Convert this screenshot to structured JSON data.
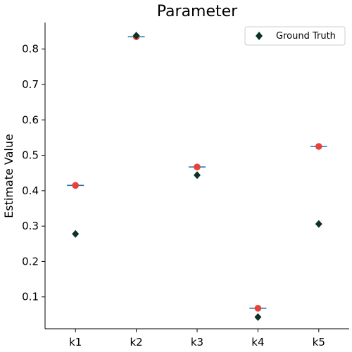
{
  "chart_data": {
    "type": "scatter",
    "title": "Parameter",
    "xlabel": "",
    "ylabel": "Estimate Value",
    "categories": [
      "k1",
      "k2",
      "k3",
      "k4",
      "k5"
    ],
    "ylim": [
      0.01,
      0.875
    ],
    "yticks": [
      0.1,
      0.2,
      0.3,
      0.4,
      0.5,
      0.6,
      0.7,
      0.8
    ],
    "ytick_labels": [
      "0.1",
      "0.2",
      "0.3",
      "0.4",
      "0.5",
      "0.6",
      "0.7",
      "0.8"
    ],
    "series": [
      {
        "values": [
          0.415,
          0.835,
          0.467,
          0.068,
          0.525
        ],
        "marker": "circle",
        "color": "#e8413a"
      },
      {
        "values": [
          0.415,
          0.835,
          0.467,
          0.068,
          0.525
        ],
        "marker": "hline",
        "color": "#1f77b4"
      },
      {
        "name": "Ground Truth",
        "values": [
          0.278,
          0.838,
          0.444,
          0.043,
          0.306
        ],
        "marker": "diamond",
        "color": "#0b3325"
      }
    ],
    "legend": {
      "position": "top-right",
      "entries": [
        "Ground Truth"
      ]
    },
    "grid": false
  }
}
